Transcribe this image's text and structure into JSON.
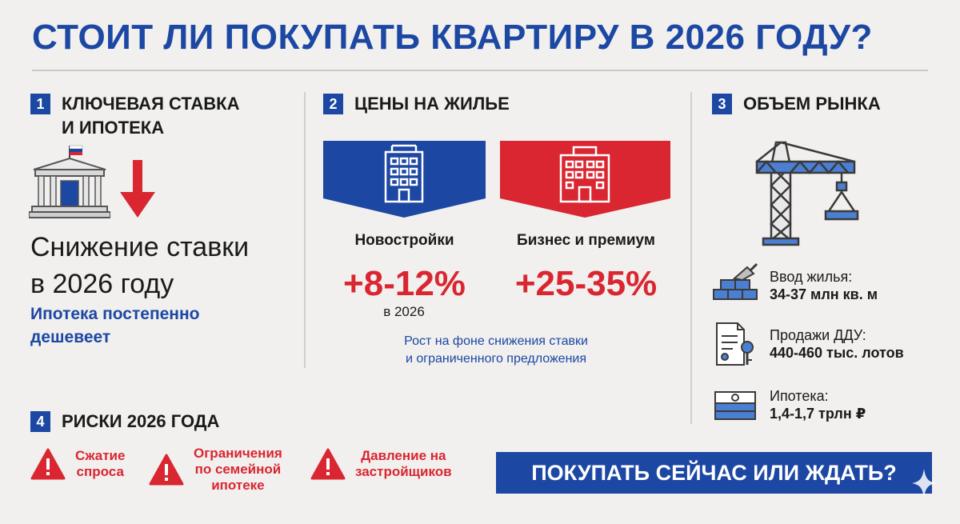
{
  "title": "СТОИТ ЛИ ПОКУПАТЬ КВАРТИРУ В 2026 ГОДУ?",
  "colors": {
    "blue": "#1c47a3",
    "red": "#d92631",
    "background": "#f1f0ee"
  },
  "section1": {
    "number": "1",
    "title_line1": "КЛЮЧЕВАЯ СТАВКА",
    "title_line2": "И ИПОТЕКА",
    "icons": [
      "central-bank-building-icon",
      "arrow-down-icon"
    ],
    "big_line1": "Снижение ставки",
    "big_line2": "в 2026 году",
    "sub_line1": "Ипотека постепенно",
    "sub_line2": "дешевеет"
  },
  "section2": {
    "number": "2",
    "title": "ЦЕНЫ НА ЖИЛЬЕ",
    "items": [
      {
        "category": "Новостройки",
        "change": "+8-12%",
        "color": "#1c47a3",
        "icon": "apartment-building-icon"
      },
      {
        "category": "Бизнес и премиум",
        "change": "+25-35%",
        "color": "#d92631",
        "icon": "premium-building-icon"
      }
    ],
    "year": "в 2026",
    "note_line1": "Рост на фоне снижения ставки",
    "note_line2": "и ограниченного предложения"
  },
  "section3": {
    "number": "3",
    "title": "ОБЪЕМ РЫНКА",
    "icon": "construction-crane-icon",
    "stats": [
      {
        "label": "Ввод жилья:",
        "value": "34-37 млн кв. м",
        "icon": "bricks-trowel-icon"
      },
      {
        "label": "Продажи ДДУ:",
        "value": "440-460 тыс. лотов",
        "icon": "contract-keys-icon"
      },
      {
        "label": "Ипотека:",
        "value": "1,4-1,7 трлн ₽",
        "icon": "money-stack-icon"
      }
    ]
  },
  "section4": {
    "number": "4",
    "title": "РИСКИ 2026 ГОДА",
    "risks": [
      {
        "line1": "Сжатие",
        "line2": "спроса",
        "line3": "",
        "icon": "warning-icon"
      },
      {
        "line1": "Ограничения",
        "line2": "по семейной",
        "line3": "ипотеке",
        "icon": "warning-icon"
      },
      {
        "line1": "Давление на",
        "line2": "застройщиков",
        "line3": "",
        "icon": "warning-icon"
      }
    ]
  },
  "cta": "ПОКУПАТЬ СЕЙЧАС ИЛИ ЖДАТЬ?"
}
